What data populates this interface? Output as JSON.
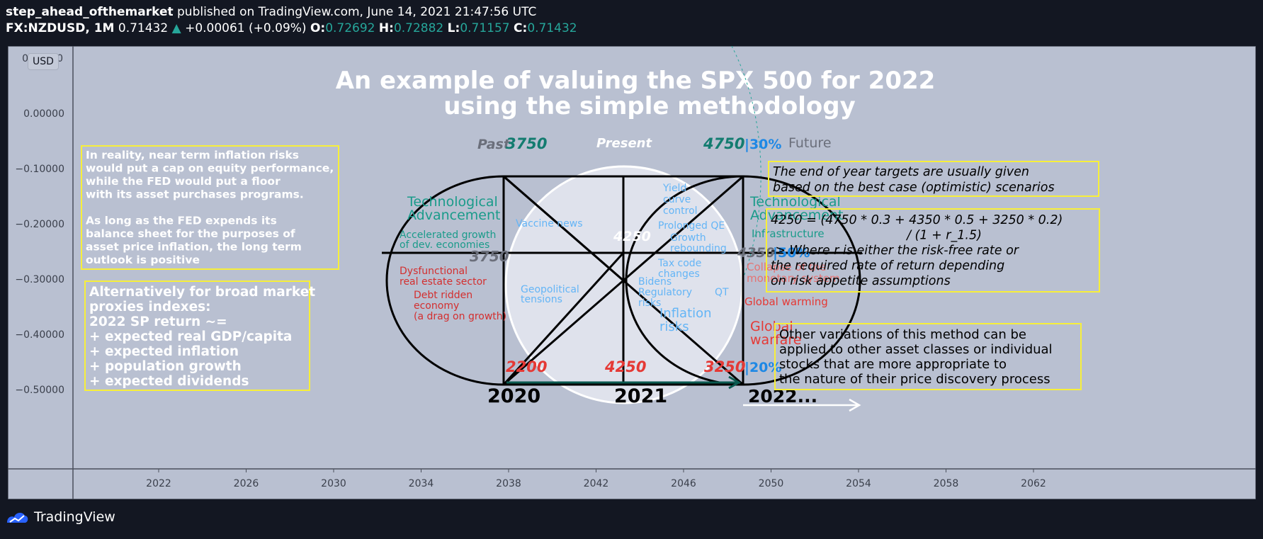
{
  "header": {
    "author": "step_ahead_ofthemarket",
    "published": " published on TradingView.com, June 14, 2021 21:47:56 UTC",
    "symbol": "FX:NZDUSD, 1M",
    "price": "0.71432",
    "change": "+0.00061 (+0.09%)",
    "o_label": "O:",
    "o_value": "0.72692",
    "h_label": "H:",
    "h_value": "0.72882",
    "l_label": "L:",
    "l_value": "0.71157",
    "c_label": "C:",
    "c_value": "0.71432"
  },
  "currency_badge": "USD",
  "footer": {
    "brand": "TradingView"
  },
  "colors": {
    "chart_bg": "#b9c0d1",
    "teal": "#26a69a",
    "red": "#e53935",
    "blue": "#42a5f5",
    "yellow": "#f7ef3a"
  },
  "chart_data": {
    "type": "line",
    "title": "An example of valuing the SPX 500 for 2022",
    "subtitle": "using the simple methodology",
    "y_ticks": [
      "0.00000",
      "−0.10000",
      "−0.20000",
      "−0.30000",
      "−0.40000",
      "−0.50000"
    ],
    "y_top_partial": "0.10000",
    "x_ticks": [
      "2022",
      "2026",
      "2030",
      "2034",
      "2038",
      "2042",
      "2046",
      "2050",
      "2054",
      "2058",
      "2062"
    ],
    "grid": false
  },
  "diagram": {
    "past_label": "Past",
    "present_label": "Present",
    "future_label": "Future",
    "top_past_value": "3750",
    "top_future_value": "4750",
    "top_future_prob": "30%",
    "center_value": "4250",
    "left_mid_value": "3750",
    "right_mid_value": "4350",
    "right_mid_prob": "50%",
    "bottom_left_value": "2200",
    "bottom_mid_value": "4250",
    "bottom_right_value": "3250",
    "bottom_right_prob": "20%",
    "year_2020": "2020",
    "year_2021": "2021",
    "year_2022": "2022...",
    "left_tech_line1": "Technological",
    "left_tech_line2": "Advancement",
    "left_growth_line1": "Accelerated growth",
    "left_growth_line2": "of dev. economies",
    "left_dysf_line1": "Dysfunctional",
    "left_dysf_line2": "real estate sector",
    "left_debt_line1": "Debt ridden",
    "left_debt_line2": "economy",
    "left_debt_line3": "(a drag on growth)",
    "right_tech_line1": "Technological",
    "right_tech_line2": "Advancement",
    "right_infra": "Infrastructure",
    "right_collapse_line1": "Collapse of the",
    "right_collapse_line2": "monetary system",
    "right_warming": "Global warming",
    "right_warfare_line1": "Global",
    "right_warfare_line2": "warfare",
    "vaccine": "Vaccine news",
    "geo_line1": "Geopolitical",
    "geo_line2": "tensions",
    "yield_line1": "Yield",
    "yield_line2": "curve",
    "yield_line3": "control",
    "qe": "Prolonged QE",
    "growth_line1": "Growth",
    "growth_line2": "rebounding",
    "tax_line1": "Tax code",
    "tax_line2": "changes",
    "bidens_line1": "Bidens",
    "bidens_line2": "Regulatory",
    "bidens_line3": "risks",
    "qt": "QT",
    "inflation_line1": "Inflation",
    "inflation_line2": "risks"
  },
  "notes": {
    "box1": [
      "In reality, near term inflation risks",
      "would put a cap on equity performance,",
      "while the FED would put a floor",
      "with its asset purchases programs.",
      "",
      "As long as the FED expends its",
      "balance sheet for the purposes of",
      "asset price inflation, the long term",
      "outlook is positive"
    ],
    "box2": [
      "Alternatively for broad market",
      "proxies indexes:",
      "2022 SP return ~=",
      "+ expected real GDP/capita",
      "+ expected inflation",
      "+ population growth",
      "+ expected dividends"
    ],
    "box3": [
      "The end of year targets are usually given",
      "based on the best case (optimistic) scenarios"
    ],
    "box4": [
      "4250 = (4750 * 0.3 + 4350 * 0.5 + 3250 * 0.2)",
      "/ (1 + r_1.5)",
      "-> Where r is either the risk-free rate or",
      " the required rate of return depending",
      "on risk appetite assumptions"
    ],
    "box5": [
      "Other variations of this method can be",
      "applied to other asset classes or individual",
      "stocks that are more appropriate to",
      "the nature of their price discovery process"
    ]
  }
}
